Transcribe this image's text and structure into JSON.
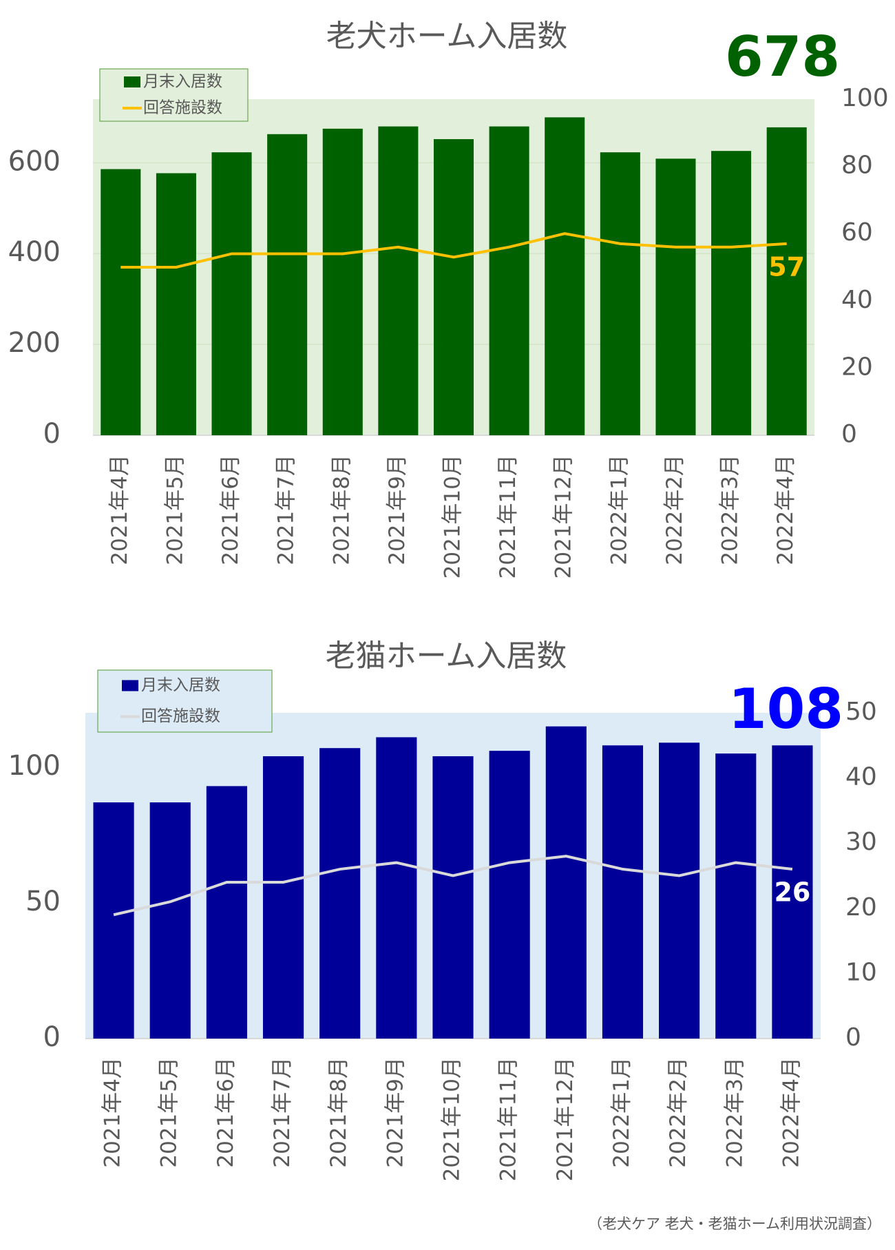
{
  "chart_data": [
    {
      "type": "bar",
      "title": "老犬ホーム入居数",
      "plot_color": "#e2efda",
      "grid": true,
      "legend": "top-left",
      "highlight_color": "#006100",
      "categories": [
        "2021年4月",
        "2021年5月",
        "2021年6月",
        "2021年7月",
        "2021年8月",
        "2021年9月",
        "2021年10月",
        "2021年11月",
        "2021年12月",
        "2022年1月",
        "2022年2月",
        "2022年3月",
        "2022年4月"
      ],
      "series": [
        {
          "name": "月末入居数",
          "type": "bar",
          "color": "#006100",
          "values": [
            586,
            577,
            623,
            663,
            675,
            680,
            652,
            680,
            700,
            623,
            609,
            626,
            678
          ]
        },
        {
          "name": "回答施設数",
          "type": "line",
          "axis": "y2",
          "color": "#ffc000",
          "label_color": "#ffc000",
          "values": [
            50,
            50,
            54,
            54,
            54,
            56,
            53,
            56,
            60,
            57,
            56,
            56,
            57
          ]
        }
      ],
      "ylim": [
        0,
        740
      ],
      "yticks": [
        0,
        200,
        400,
        600
      ],
      "y2lim": [
        0,
        100
      ],
      "y2ticks": [
        0,
        20,
        40,
        60,
        80,
        100
      ]
    },
    {
      "type": "bar",
      "title": "老猫ホーム入居数",
      "plot_color": "#ddebf7",
      "grid": false,
      "legend": "top-left",
      "highlight_color": "#0000ff",
      "categories": [
        "2021年4月",
        "2021年5月",
        "2021年6月",
        "2021年7月",
        "2021年8月",
        "2021年9月",
        "2021年10月",
        "2021年11月",
        "2021年12月",
        "2022年1月",
        "2022年2月",
        "2022年3月",
        "2022年4月"
      ],
      "series": [
        {
          "name": "月末入居数",
          "type": "bar",
          "color": "#000099",
          "values": [
            87,
            87,
            93,
            104,
            107,
            111,
            104,
            106,
            115,
            108,
            109,
            105,
            108
          ]
        },
        {
          "name": "回答施設数",
          "type": "line",
          "axis": "y2",
          "color": "#d9d9d9",
          "label_color": "#ffffff",
          "values": [
            19,
            21,
            24,
            24,
            26,
            27,
            25,
            27,
            28,
            26,
            25,
            27,
            26
          ]
        }
      ],
      "ylim": [
        0,
        120
      ],
      "yticks": [
        0,
        50,
        100
      ],
      "y2lim": [
        0,
        50
      ],
      "y2ticks": [
        0,
        10,
        20,
        30,
        40,
        50
      ]
    }
  ],
  "source": "（老犬ケア 老犬・老猫ホーム利用状況調査）"
}
